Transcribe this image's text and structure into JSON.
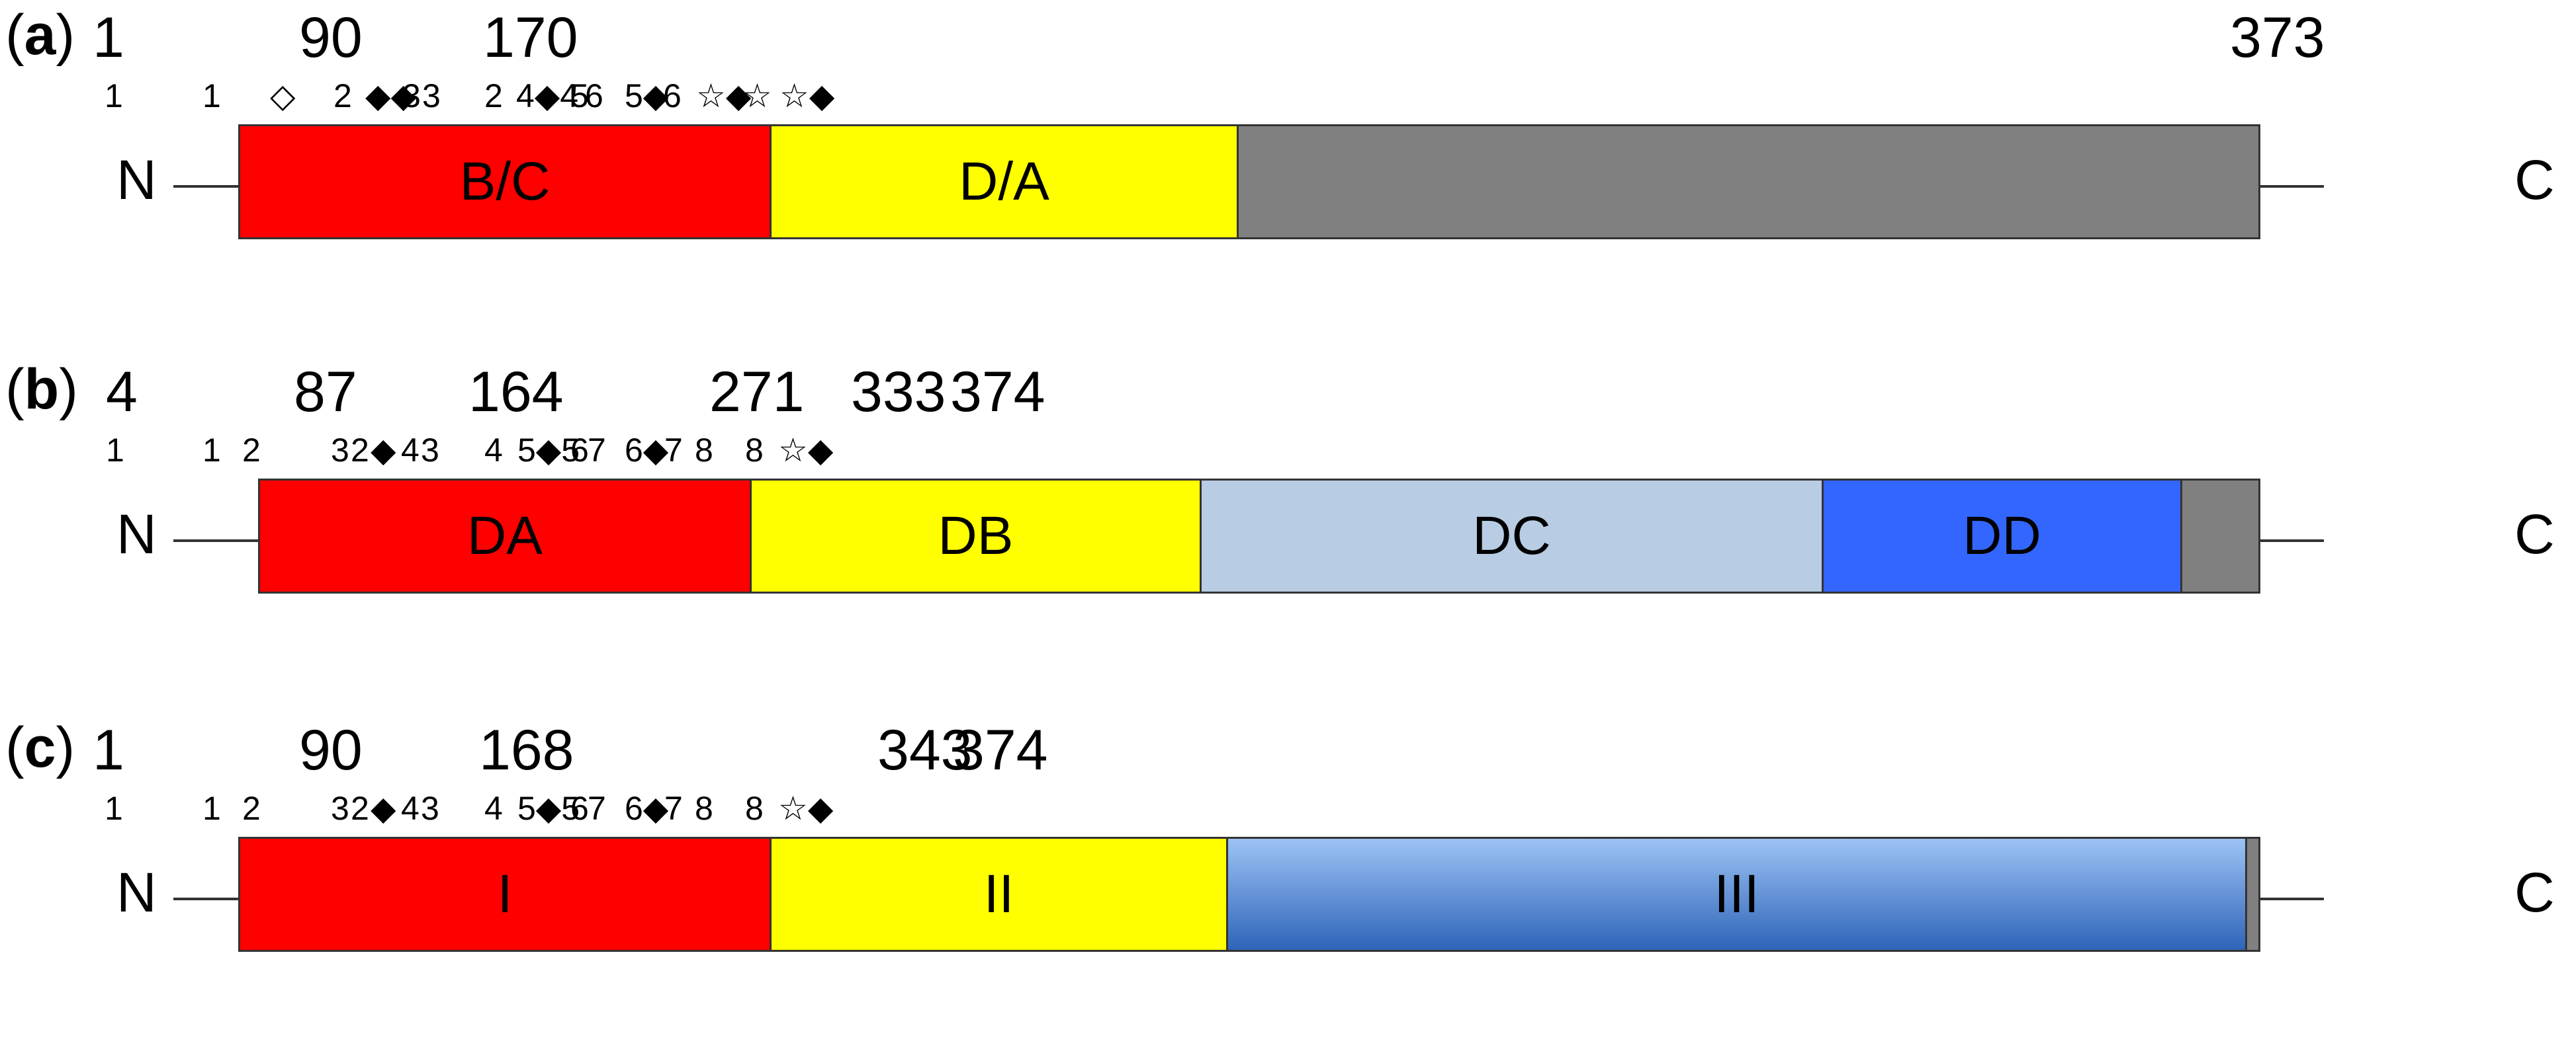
{
  "panels": [
    {
      "label_letter": "a",
      "n_label": "N",
      "c_label": "C",
      "positions": [
        "1",
        "90",
        "170",
        "373"
      ],
      "markers": [
        "1",
        "1",
        "◇",
        "2",
        "◆◆",
        "3",
        "3",
        "2",
        "4◆4",
        "5",
        "6",
        "5◆",
        "6",
        "☆◆",
        "☆",
        "☆◆"
      ],
      "segments": [
        {
          "label": "B/C",
          "color": "#ff0000"
        },
        {
          "label": "D/A",
          "color": "#ffff00"
        },
        {
          "label": "",
          "color": "#808080"
        }
      ]
    },
    {
      "label_letter": "b",
      "n_label": "N",
      "c_label": "C",
      "positions": [
        "4",
        "87",
        "164",
        "271",
        "333",
        "374"
      ],
      "markers": [
        "1",
        "1",
        "2",
        "3",
        "2",
        "◆",
        "4",
        "3",
        "4",
        "5◆5",
        "6",
        "7",
        "6◆",
        "7",
        "8",
        "8",
        "☆◆"
      ],
      "segments": [
        {
          "label": "DA",
          "color": "#ff0000"
        },
        {
          "label": "DB",
          "color": "#ffff00"
        },
        {
          "label": "DC",
          "color": "#b8cce4"
        },
        {
          "label": "DD",
          "color": "#3366ff"
        },
        {
          "label": "",
          "color": "#808080"
        }
      ]
    },
    {
      "label_letter": "c",
      "n_label": "N",
      "c_label": "C",
      "positions": [
        "1",
        "90",
        "168",
        "343",
        "374"
      ],
      "markers": [
        "1",
        "1",
        "2",
        "3",
        "2",
        "◆",
        "4",
        "3",
        "4",
        "5◆5",
        "6",
        "7",
        "6◆",
        "7",
        "8",
        "8",
        "☆◆"
      ],
      "segments": [
        {
          "label": "I",
          "color": "#ff0000"
        },
        {
          "label": "II",
          "color": "#ffff00"
        },
        {
          "label": "III",
          "color": "linear-gradient(to bottom, #9dc3f5, #2f64b8)"
        },
        {
          "label": "",
          "color": "#808080"
        }
      ]
    }
  ]
}
